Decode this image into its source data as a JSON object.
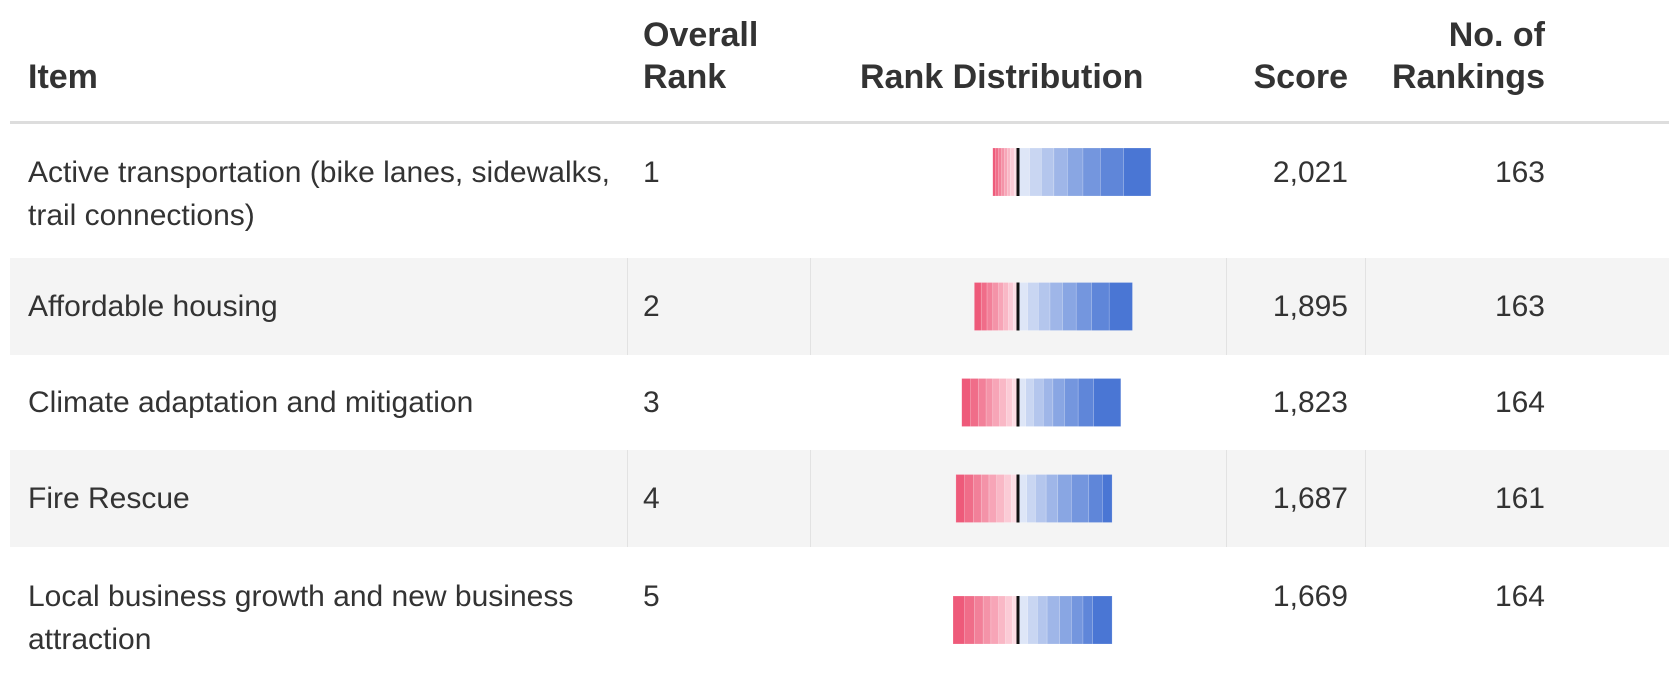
{
  "header": {
    "item": "Item",
    "overall_rank": "Overall Rank",
    "rank_distribution": "Rank Distribution",
    "score": "Score",
    "rankings": "No. of Rankings"
  },
  "rows": [
    {
      "item": "Active transportation (bike lanes, sidewalks, trail connections)",
      "rank": 1,
      "distribution": [
        28,
        24,
        18,
        16,
        14,
        13,
        12,
        12,
        4,
        4,
        3,
        3,
        3,
        3,
        3,
        3
      ],
      "score": "2,021",
      "rankings": 163
    },
    {
      "item": "Affordable housing",
      "rank": 2,
      "distribution": [
        24,
        18,
        16,
        14,
        13,
        12,
        11,
        10,
        5,
        5,
        5,
        5,
        6,
        6,
        6,
        7
      ],
      "score": "1,895",
      "rankings": 163
    },
    {
      "item": "Climate adaptation and mitigation",
      "rank": 3,
      "distribution": [
        28,
        16,
        14,
        12,
        10,
        10,
        8,
        8,
        6,
        6,
        7,
        7,
        7,
        8,
        8,
        9
      ],
      "score": "1,823",
      "rankings": 164
    },
    {
      "item": "Fire Rescue",
      "rank": 4,
      "distribution": [
        10,
        14,
        18,
        14,
        12,
        11,
        9,
        9,
        7,
        7,
        8,
        8,
        8,
        8,
        9,
        9
      ],
      "score": "1,687",
      "rankings": 161
    },
    {
      "item": "Local business growth and new business attraction",
      "rank": 5,
      "distribution": [
        20,
        10,
        12,
        12,
        13,
        10,
        10,
        10,
        6,
        7,
        7,
        8,
        8,
        9,
        10,
        12
      ],
      "score": "1,669",
      "rankings": 164
    }
  ]
}
